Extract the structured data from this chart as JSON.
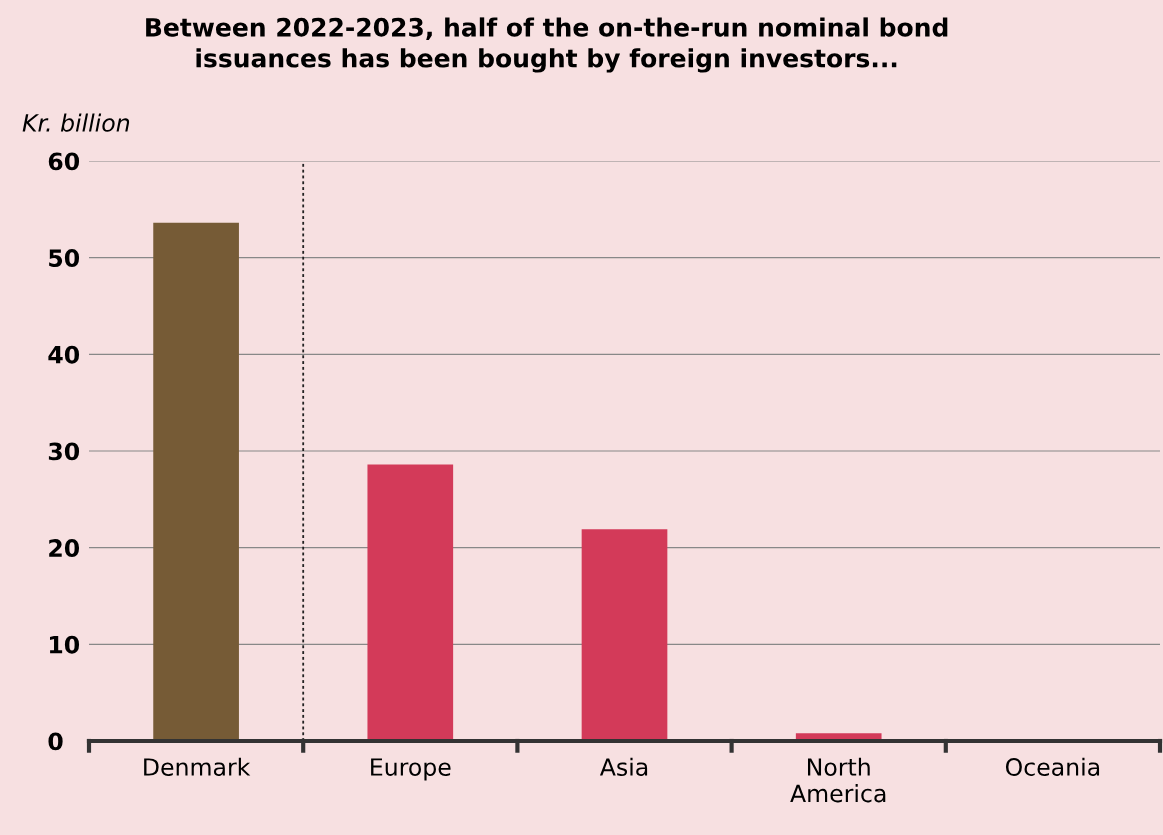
{
  "chart_data": {
    "type": "bar",
    "title": "Between 2022-2023, half of the on-the-run nominal bond\nissuances has been bought by foreign investors...",
    "ylabel": "Kr. billion",
    "categories": [
      "Denmark",
      "Europe",
      "Asia",
      "North\nAmerica",
      "Oceania"
    ],
    "values": [
      53.6,
      28.6,
      21.9,
      0.8,
      0
    ],
    "colors": [
      "#765b36",
      "#d33a59",
      "#d33a59",
      "#d33a59",
      "#d33a59"
    ],
    "ylim": [
      0,
      60
    ],
    "yticks": [
      0,
      10,
      20,
      30,
      40,
      50,
      60
    ],
    "grid": "y"
  }
}
